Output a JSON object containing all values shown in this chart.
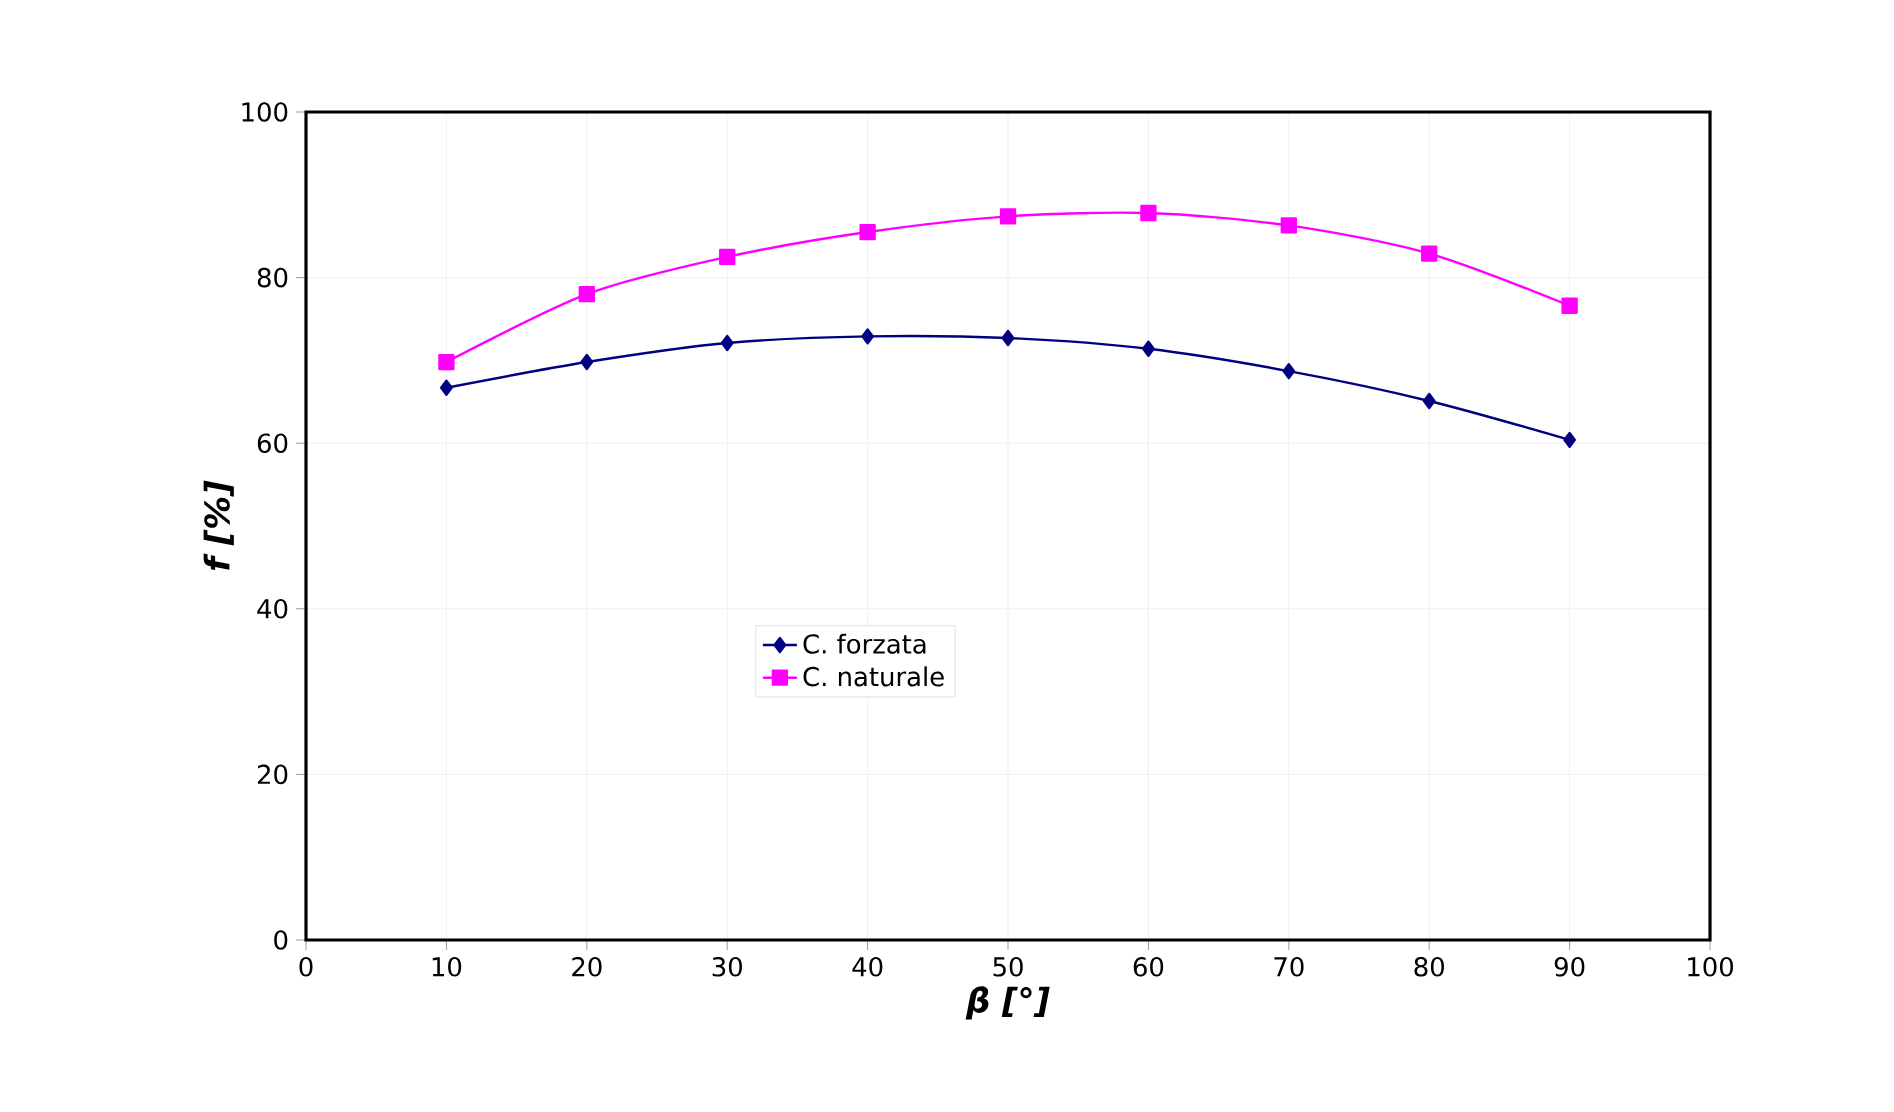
{
  "chart_data": {
    "type": "line",
    "xlabel": "β [°]",
    "ylabel": "f [%]",
    "x": [
      10,
      20,
      30,
      40,
      50,
      60,
      70,
      80,
      90
    ],
    "series": [
      {
        "name": "C. forzata",
        "color": "#000080",
        "marker": "diamond",
        "values": [
          66.7,
          69.8,
          72.1,
          72.9,
          72.7,
          71.4,
          68.7,
          65.1,
          60.4
        ]
      },
      {
        "name": "C. naturale",
        "color": "#ff00ff",
        "marker": "square",
        "values": [
          69.8,
          78.0,
          82.5,
          85.5,
          87.4,
          87.8,
          86.3,
          82.9,
          76.6
        ]
      }
    ],
    "xlim": [
      0,
      100
    ],
    "xticks": [
      0,
      10,
      20,
      30,
      40,
      50,
      60,
      70,
      80,
      90,
      100
    ],
    "ylim": [
      0,
      100
    ],
    "yticks": [
      0,
      20,
      40,
      60,
      80,
      100
    ],
    "grid": true,
    "legend": "center",
    "line_style": "solid"
  }
}
